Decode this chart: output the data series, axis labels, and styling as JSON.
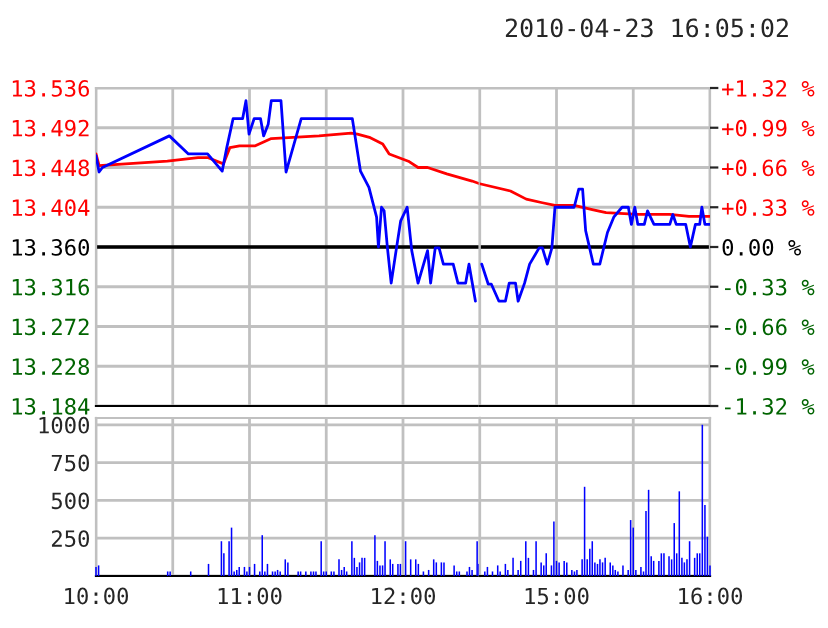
{
  "chart_data": [
    {
      "type": "line",
      "xlim": [
        10,
        12.5
      ],
      "xticks": [
        {
          "value": 10,
          "label": null
        },
        {
          "value": 10.5,
          "label": null
        },
        {
          "value": 11,
          "label": null
        },
        {
          "value": 11.5,
          "label": null
        },
        {
          "value": 12,
          "label": null
        }
      ],
      "ylim": [
        13.184,
        13.536
      ],
      "yticks": [
        {
          "value": 13.184,
          "label": "13.184"
        },
        {
          "value": 13.228,
          "label": "13.228"
        },
        {
          "value": 13.272,
          "label": "13.272"
        },
        {
          "value": 13.316,
          "label": "13.316"
        },
        {
          "value": 13.36,
          "label": "13.360"
        },
        {
          "value": 13.404,
          "label": "13.404"
        },
        {
          "value": 13.448,
          "label": "13.448"
        },
        {
          "value": 13.492,
          "label": "13.492"
        },
        {
          "value": 13.536,
          "label": "13.536"
        }
      ],
      "tick_labels": "y",
      "grid": true,
      "ref_lines": [
        {
          "axis": "y",
          "value": 13.36,
          "color": "#000000"
        }
      ],
      "series": [
        {
          "color": "#ff0000",
          "x": [
            10,
            10.02,
            10.465,
            10.665,
            10.727,
            10.83,
            10.872,
            10.935,
            11.038,
            11.142,
            11.453,
            11.662,
            11.703,
            11.787,
            11.868,
            11.91,
            12.035,
            12.098,
            12.16,
            12.285,
            12.45,
            12.5
          ],
          "values": [
            13.463,
            13.45,
            13.455,
            13.459,
            13.459,
            13.452,
            13.47,
            13.472,
            13.472,
            13.48,
            13.483,
            13.486,
            13.485,
            13.481,
            13.474,
            13.463,
            13.455,
            13.448,
            13.448,
            13.441,
            13.433,
            13.43
          ]
        },
        {
          "color": "#0000ff",
          "x": [
            10,
            10.02,
            10.042,
            10.478,
            10.602,
            10.727,
            10.822,
            10.852,
            10.893,
            10.955,
            10.977,
            10.997,
            11.03,
            11.072,
            11.092,
            11.122,
            11.142,
            11.205,
            11.238,
            11.337,
            11.67,
            11.723,
            11.778,
            11.828,
            11.84,
            11.86,
            11.877,
            11.898,
            11.923,
            11.955,
            11.985,
            12.027,
            12.057,
            12.098,
            12.16,
            12.18,
            12.21,
            12.235,
            12.263,
            12.327,
            12.358,
            12.408,
            12.43,
            12.472
          ],
          "values": [
            13.461,
            13.443,
            13.448,
            13.483,
            13.463,
            13.463,
            13.444,
            13.47,
            13.502,
            13.502,
            13.522,
            13.485,
            13.502,
            13.502,
            13.483,
            13.496,
            13.522,
            13.522,
            13.443,
            13.502,
            13.502,
            13.444,
            13.426,
            13.393,
            13.36,
            13.404,
            13.4,
            13.36,
            13.32,
            13.356,
            13.389,
            13.404,
            13.356,
            13.32,
            13.356,
            13.32,
            13.359,
            13.359,
            13.341,
            13.341,
            13.32,
            13.32,
            13.341,
            13.3
          ]
        }
      ]
    },
    {
      "type": "line",
      "title": "2010-04-23 16:05:02",
      "xlim": [
        14.5,
        16
      ],
      "xticks": [
        {
          "value": 14.5,
          "label": null
        },
        {
          "value": 15,
          "label": null
        },
        {
          "value": 15.5,
          "label": null
        },
        {
          "value": 16,
          "label": null
        }
      ],
      "ylim": [
        13.184,
        13.536
      ],
      "yticks": [
        {
          "value": 13.184,
          "label": null
        },
        {
          "value": 13.228,
          "label": null
        },
        {
          "value": 13.272,
          "label": null
        },
        {
          "value": 13.316,
          "label": null
        },
        {
          "value": 13.36,
          "label": null
        },
        {
          "value": 13.404,
          "label": null
        },
        {
          "value": 13.448,
          "label": null
        },
        {
          "value": 13.492,
          "label": null
        },
        {
          "value": 13.536,
          "label": null
        }
      ],
      "y2lim": [
        -1.32,
        1.32
      ],
      "y2ticks": [
        {
          "value": -1.32,
          "label": "-1.32 %"
        },
        {
          "value": -0.99,
          "label": "-0.99 %"
        },
        {
          "value": -0.66,
          "label": "-0.66 %"
        },
        {
          "value": -0.33,
          "label": "-0.33 %"
        },
        {
          "value": 0,
          "label": "0.00 %"
        },
        {
          "value": 0.33,
          "label": "+0.33 %"
        },
        {
          "value": 0.66,
          "label": "+0.66 %"
        },
        {
          "value": 0.99,
          "label": "+0.99 %"
        },
        {
          "value": 1.32,
          "label": "+1.32 %"
        }
      ],
      "tick_labels": false,
      "grid": true,
      "ref_lines": [
        {
          "axis": "y",
          "value": 13.36,
          "color": "#000000"
        }
      ],
      "series": [
        {
          "color": "#ff0000",
          "x": [
            14.5,
            14.7,
            14.803,
            14.908,
            14.99,
            15.115,
            15.24,
            15.323,
            15.53,
            15.738,
            15.863,
            15.997
          ],
          "values": [
            13.43,
            13.422,
            13.413,
            13.409,
            13.406,
            13.406,
            13.401,
            13.398,
            13.396,
            13.396,
            13.394,
            13.394
          ]
        },
        {
          "color": "#0000ff",
          "x": [
            14.513,
            14.555,
            14.575,
            14.625,
            14.667,
            14.692,
            14.733,
            14.75,
            14.792,
            14.825,
            14.887,
            14.908,
            14.94,
            14.97,
            14.99,
            15.115,
            15.145,
            15.17,
            15.19,
            15.24,
            15.282,
            15.332,
            15.373,
            15.427,
            15.468,
            15.488,
            15.51,
            15.53,
            15.572,
            15.593,
            15.635,
            15.738,
            15.758,
            15.78,
            15.842,
            15.872,
            15.905,
            15.933,
            15.947,
            15.967,
            15.997
          ],
          "values": [
            13.341,
            13.319,
            13.319,
            13.3,
            13.3,
            13.32,
            13.32,
            13.3,
            13.32,
            13.341,
            13.359,
            13.359,
            13.341,
            13.359,
            13.404,
            13.404,
            13.424,
            13.424,
            13.378,
            13.341,
            13.341,
            13.376,
            13.393,
            13.404,
            13.404,
            13.385,
            13.404,
            13.385,
            13.385,
            13.4,
            13.385,
            13.385,
            13.396,
            13.385,
            13.385,
            13.36,
            13.385,
            13.385,
            13.404,
            13.385,
            13.385
          ]
        }
      ]
    },
    {
      "type": "bar",
      "xlim": [
        10,
        12.5
      ],
      "xticks": [
        {
          "value": 10,
          "label": "10:00"
        },
        {
          "value": 10.5,
          "label": null
        },
        {
          "value": 11,
          "label": "11:00"
        },
        {
          "value": 11.5,
          "label": null
        },
        {
          "value": 12,
          "label": "12:00"
        }
      ],
      "ylim": [
        0,
        1045
      ],
      "yticks": [
        {
          "value": 0,
          "label": null
        },
        250,
        500,
        750,
        1000
      ],
      "grid": true,
      "series": [
        {
          "color": "#0000ff",
          "x": [
            10,
            10.017,
            10.467,
            10.483,
            10.617,
            10.733,
            10.817,
            10.833,
            10.867,
            10.883,
            10.9,
            10.917,
            10.933,
            10.967,
            10.983,
            11,
            11.033,
            11.067,
            11.083,
            11.1,
            11.117,
            11.15,
            11.167,
            11.183,
            11.2,
            11.233,
            11.25,
            11.317,
            11.333,
            11.367,
            11.4,
            11.417,
            11.433,
            11.467,
            11.483,
            11.5,
            11.533,
            11.55,
            11.583,
            11.6,
            11.617,
            11.633,
            11.667,
            11.683,
            11.7,
            11.717,
            11.733,
            11.75,
            11.817,
            11.833,
            11.85,
            11.867,
            11.883,
            11.917,
            11.933,
            11.967,
            11.983,
            12.017,
            12.05,
            12.083,
            12.1,
            12.133,
            12.167,
            12.2,
            12.217,
            12.25,
            12.267,
            12.333,
            12.35,
            12.367,
            12.417,
            12.433,
            12.45,
            12.483,
            12.493
          ],
          "values": [
            60,
            70,
            30,
            30,
            30,
            80,
            230,
            150,
            230,
            320,
            30,
            40,
            60,
            60,
            30,
            60,
            80,
            30,
            270,
            30,
            80,
            30,
            30,
            40,
            30,
            110,
            90,
            30,
            30,
            30,
            30,
            30,
            30,
            230,
            30,
            30,
            30,
            30,
            110,
            40,
            60,
            30,
            230,
            120,
            60,
            90,
            120,
            120,
            270,
            100,
            70,
            70,
            230,
            110,
            80,
            80,
            80,
            230,
            110,
            110,
            80,
            30,
            40,
            110,
            90,
            90,
            90,
            70,
            30,
            30,
            30,
            60,
            40,
            230,
            80
          ]
        }
      ]
    },
    {
      "type": "bar",
      "xlim": [
        14.5,
        16
      ],
      "xticks": [
        {
          "value": 14.5,
          "label": null
        },
        {
          "value": 15,
          "label": "15:00"
        },
        {
          "value": 15.5,
          "label": null
        },
        {
          "value": 16,
          "label": "16:00"
        }
      ],
      "ylim": [
        0,
        1045
      ],
      "yticks": [
        {
          "value": 0,
          "label": null
        },
        {
          "value": 250,
          "label": null
        },
        {
          "value": 500,
          "label": null
        },
        {
          "value": 750,
          "label": null
        },
        {
          "value": 1000,
          "label": null
        }
      ],
      "grid": true,
      "tick_labels": "x",
      "series": [
        {
          "color": "#0000ff",
          "x": [
            14.533,
            14.55,
            14.583,
            14.617,
            14.633,
            14.667,
            14.683,
            14.717,
            14.75,
            14.767,
            14.8,
            14.817,
            14.85,
            14.867,
            14.9,
            14.917,
            14.933,
            14.967,
            14.983,
            15,
            15.017,
            15.05,
            15.067,
            15.1,
            15.117,
            15.133,
            15.167,
            15.183,
            15.2,
            15.217,
            15.233,
            15.25,
            15.267,
            15.283,
            15.3,
            15.317,
            15.35,
            15.367,
            15.383,
            15.4,
            15.433,
            15.467,
            15.483,
            15.5,
            15.517,
            15.55,
            15.567,
            15.583,
            15.6,
            15.617,
            15.633,
            15.667,
            15.683,
            15.7,
            15.733,
            15.75,
            15.767,
            15.783,
            15.8,
            15.817,
            15.833,
            15.85,
            15.867,
            15.9,
            15.917,
            15.933,
            15.95,
            15.967,
            15.983,
            16
          ],
          "values": [
            30,
            60,
            30,
            70,
            30,
            80,
            40,
            120,
            40,
            100,
            230,
            120,
            40,
            230,
            90,
            70,
            150,
            70,
            360,
            100,
            90,
            100,
            90,
            40,
            30,
            40,
            110,
            590,
            110,
            180,
            230,
            90,
            80,
            110,
            90,
            120,
            90,
            70,
            40,
            30,
            70,
            40,
            370,
            320,
            40,
            60,
            30,
            430,
            570,
            130,
            100,
            100,
            150,
            150,
            130,
            110,
            350,
            150,
            560,
            120,
            90,
            110,
            230,
            120,
            150,
            150,
            1000,
            470,
            260,
            70
          ]
        }
      ]
    }
  ]
}
